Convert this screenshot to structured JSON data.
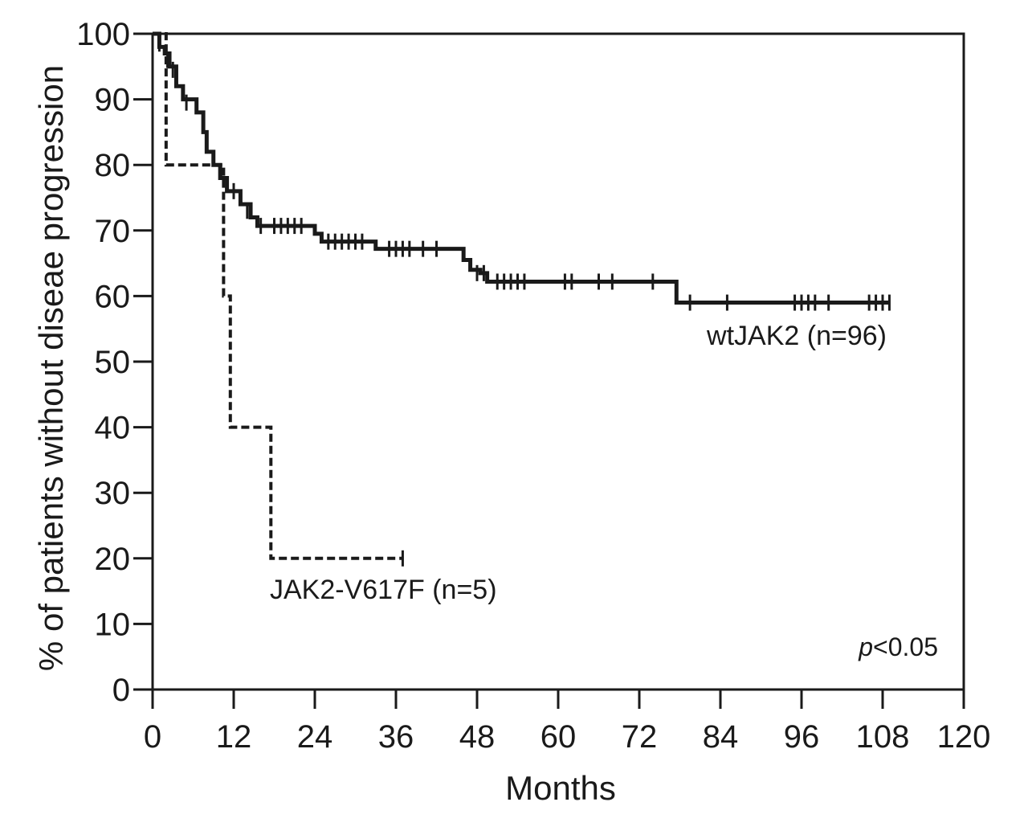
{
  "chart_data": {
    "type": "line",
    "subtype": "kaplan-meier",
    "title": "",
    "xlabel": "Months",
    "ylabel": "% of patients without diseae progression",
    "xlim": [
      0,
      120
    ],
    "ylim": [
      0,
      100
    ],
    "xticks": [
      0,
      12,
      24,
      36,
      48,
      60,
      72,
      84,
      96,
      108,
      120
    ],
    "yticks": [
      0,
      10,
      20,
      30,
      40,
      50,
      60,
      70,
      80,
      90,
      100
    ],
    "grid": false,
    "p_value": {
      "prefix": "p",
      "suffix": "<0.05"
    },
    "series": [
      {
        "name": "wtJAK2 (n=96)",
        "style": "solid",
        "color": "#1a1a1a",
        "steps": [
          [
            0,
            100
          ],
          [
            1,
            98
          ],
          [
            1.8,
            97
          ],
          [
            2.5,
            95
          ],
          [
            3.5,
            92
          ],
          [
            4.5,
            90
          ],
          [
            6.5,
            88
          ],
          [
            7.5,
            85
          ],
          [
            8,
            82
          ],
          [
            9,
            80
          ],
          [
            10,
            78
          ],
          [
            11,
            76
          ],
          [
            13,
            74
          ],
          [
            14.5,
            72
          ],
          [
            15.5,
            70.7
          ],
          [
            24,
            69.5
          ],
          [
            25,
            68.3
          ],
          [
            33,
            67.2
          ],
          [
            46,
            65.5
          ],
          [
            47,
            64
          ],
          [
            48.5,
            63.5
          ],
          [
            49.5,
            62.2
          ],
          [
            77.5,
            59
          ],
          [
            109,
            59
          ]
        ],
        "censored": [
          [
            1,
            98.5
          ],
          [
            2.2,
            96
          ],
          [
            3,
            94.5
          ],
          [
            5,
            89.5
          ],
          [
            12,
            76
          ],
          [
            14,
            73
          ],
          [
            16,
            70.7
          ],
          [
            18,
            70.7
          ],
          [
            19,
            70.7
          ],
          [
            20,
            70.7
          ],
          [
            21,
            70.7
          ],
          [
            22,
            70.7
          ],
          [
            26,
            68.3
          ],
          [
            27,
            68.3
          ],
          [
            28,
            68.3
          ],
          [
            29,
            68.3
          ],
          [
            30,
            68.3
          ],
          [
            31,
            68.3
          ],
          [
            35,
            67.2
          ],
          [
            36,
            67.2
          ],
          [
            37,
            67.2
          ],
          [
            38,
            67.2
          ],
          [
            40,
            67.2
          ],
          [
            42,
            67.2
          ],
          [
            48,
            63.5
          ],
          [
            49,
            63.5
          ],
          [
            51,
            62.2
          ],
          [
            52,
            62.2
          ],
          [
            53,
            62.2
          ],
          [
            54,
            62.2
          ],
          [
            55,
            62.2
          ],
          [
            61,
            62.2
          ],
          [
            62,
            62.2
          ],
          [
            66,
            62.2
          ],
          [
            68,
            62.2
          ],
          [
            74,
            62.2
          ],
          [
            79.5,
            59
          ],
          [
            85,
            59
          ],
          [
            95,
            59
          ],
          [
            96,
            59
          ],
          [
            97,
            59
          ],
          [
            98,
            59
          ],
          [
            100,
            59
          ],
          [
            106,
            59
          ],
          [
            107,
            59
          ],
          [
            108,
            59
          ],
          [
            109,
            59
          ]
        ],
        "label": "wtJAK2 (n=96)"
      },
      {
        "name": "JAK2-V617F (n=5)",
        "style": "dashed",
        "color": "#1a1a1a",
        "steps": [
          [
            0,
            100
          ],
          [
            2,
            80
          ],
          [
            10.5,
            60
          ],
          [
            11.5,
            40
          ],
          [
            17.5,
            20
          ],
          [
            37,
            20
          ]
        ],
        "censored": [
          [
            37,
            20
          ]
        ],
        "label": "JAK2-V617F (n=5)"
      }
    ]
  }
}
